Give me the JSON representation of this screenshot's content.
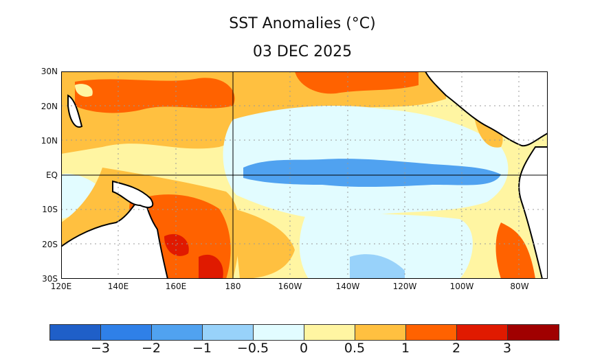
{
  "title": "SST Anomalies (°C)",
  "date": "03 DEC 2025",
  "map": {
    "lat_labels": [
      "30N",
      "20N",
      "10N",
      "EQ",
      "10S",
      "20S",
      "30S"
    ],
    "lon_labels": [
      "120E",
      "140E",
      "160E",
      "180",
      "160W",
      "140W",
      "120W",
      "100W",
      "80W"
    ],
    "region": "Tropical Pacific, 120E–70W, 30S–30N",
    "land_color": "#ffffff"
  },
  "colorbar": {
    "colors": [
      "#1f5fc8",
      "#2f80e8",
      "#50a2f0",
      "#98d2fa",
      "#e2fcff",
      "#fff5a2",
      "#ffc040",
      "#ff6200",
      "#e01a00",
      "#a00000"
    ],
    "labels": [
      "−3",
      "−2",
      "−1",
      "−0.5",
      "0",
      "0.5",
      "1",
      "2",
      "3"
    ]
  }
}
